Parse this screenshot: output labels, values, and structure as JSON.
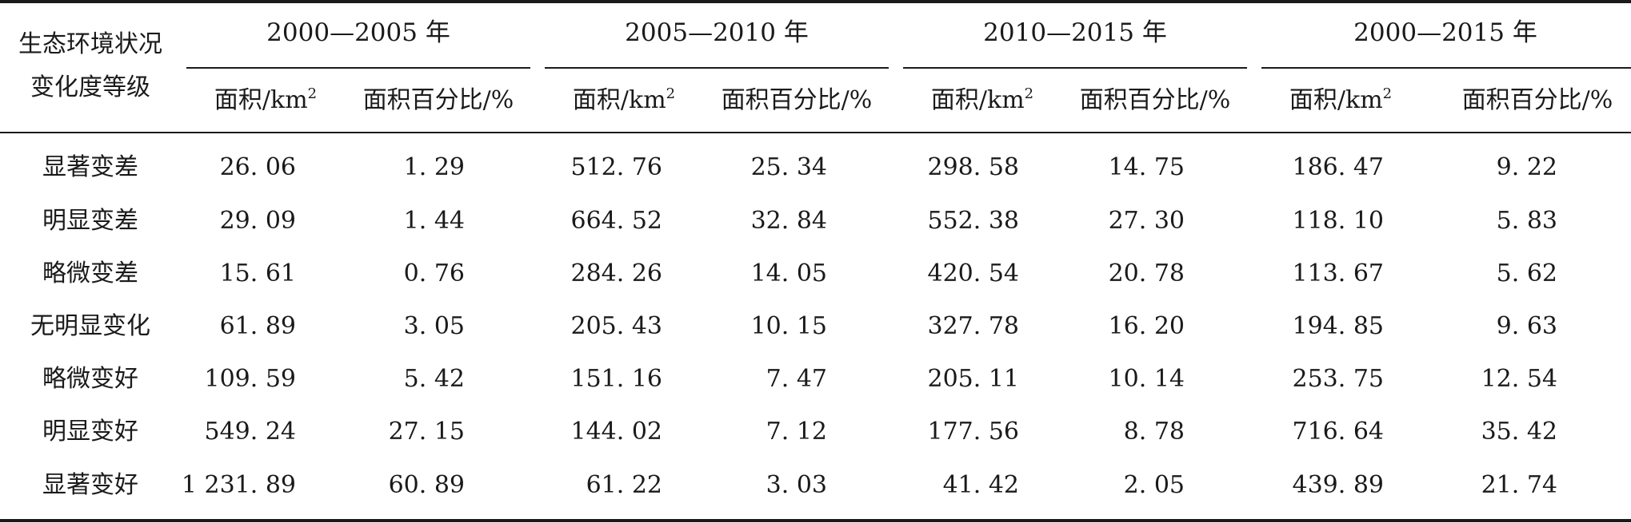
{
  "table": {
    "stub_header": {
      "line1": "生态环境状况",
      "line2": "变化度等级"
    },
    "groups": [
      {
        "period": "2000—2005 年",
        "area_label": "面积/km",
        "area_sup": "2",
        "percent_label": "面积百分比/%"
      },
      {
        "period": "2005—2010 年",
        "area_label": "面积/km",
        "area_sup": "2",
        "percent_label": "面积百分比/%"
      },
      {
        "period": "2010—2015 年",
        "area_label": "面积/km",
        "area_sup": "2",
        "percent_label": "面积百分比/%"
      },
      {
        "period": "2000—2015 年",
        "area_label": "面积/km",
        "area_sup": "2",
        "percent_label": "面积百分比/%"
      }
    ],
    "rows": [
      {
        "level": "显著变差",
        "values": [
          "26. 06",
          "1. 29",
          "512. 76",
          "25. 34",
          "298. 58",
          "14. 75",
          "186. 47",
          "9. 22"
        ]
      },
      {
        "level": "明显变差",
        "values": [
          "29. 09",
          "1. 44",
          "664. 52",
          "32. 84",
          "552. 38",
          "27. 30",
          "118. 10",
          "5. 83"
        ]
      },
      {
        "level": "略微变差",
        "values": [
          "15. 61",
          "0. 76",
          "284. 26",
          "14. 05",
          "420. 54",
          "20. 78",
          "113. 67",
          "5. 62"
        ]
      },
      {
        "level": "无明显变化",
        "values": [
          "61. 89",
          "3. 05",
          "205. 43",
          "10. 15",
          "327. 78",
          "16. 20",
          "194. 85",
          "9. 63"
        ]
      },
      {
        "level": "略微变好",
        "values": [
          "109. 59",
          "5. 42",
          "151. 16",
          "7. 47",
          "205. 11",
          "10. 14",
          "253. 75",
          "12. 54"
        ]
      },
      {
        "level": "明显变好",
        "values": [
          "549. 24",
          "27. 15",
          "144. 02",
          "7. 12",
          "177. 56",
          "8. 78",
          "716. 64",
          "35. 42"
        ]
      },
      {
        "level": "显著变好",
        "values": [
          "1 231. 89",
          "60. 89",
          "61. 22",
          "3. 03",
          "41. 42",
          "2. 05",
          "439. 89",
          "21. 74"
        ]
      }
    ]
  }
}
